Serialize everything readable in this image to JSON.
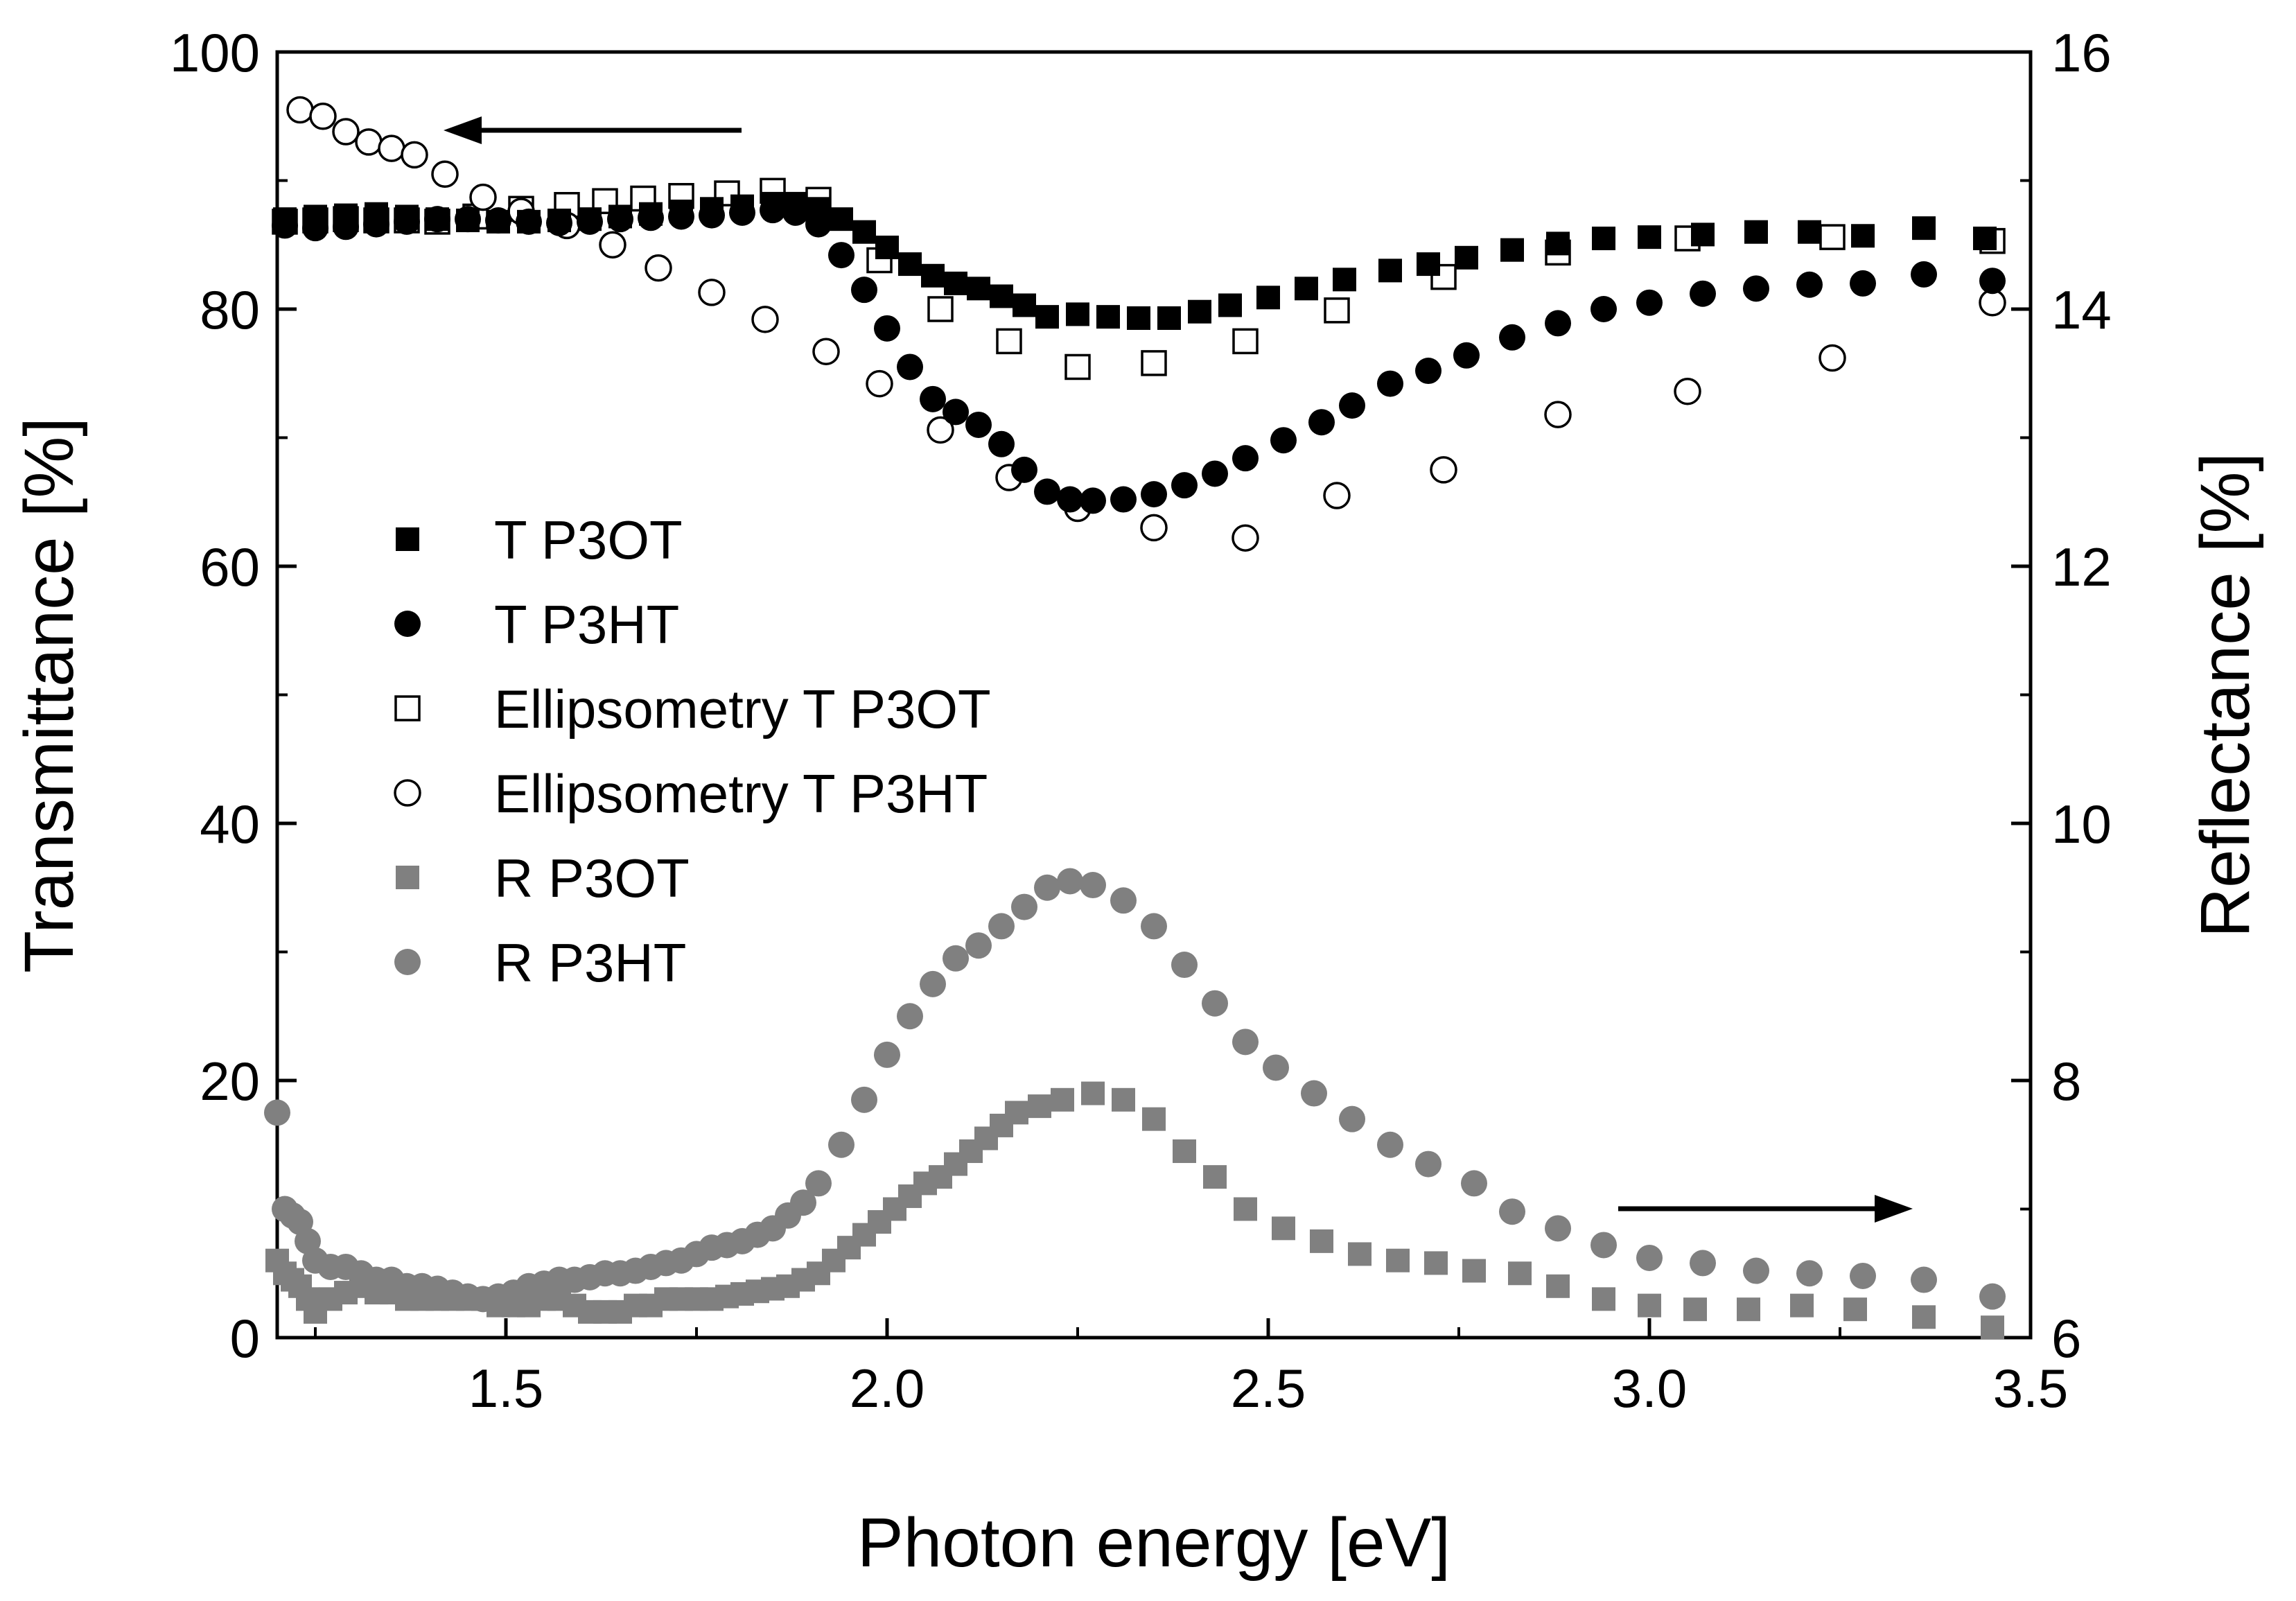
{
  "chart_data": {
    "type": "scatter",
    "xlabel": "Photon energy [eV]",
    "ylabel": "Transmittance [%]",
    "y2label": "Reflectance [%]",
    "xlim": [
      1.2,
      3.5
    ],
    "ylim": [
      0,
      100
    ],
    "y2lim": [
      6,
      16
    ],
    "xticks": [
      1.5,
      2.0,
      2.5,
      3.0,
      3.5
    ],
    "xtick_labels": [
      "1.5",
      "2.0",
      "2.5",
      "3.0",
      "3.5"
    ],
    "yticks": [
      0,
      20,
      40,
      60,
      80,
      100
    ],
    "ytick_labels": [
      "0",
      "20",
      "40",
      "60",
      "80",
      "100"
    ],
    "y2ticks": [
      6,
      8,
      10,
      12,
      14,
      16
    ],
    "y2tick_labels": [
      "6",
      "8",
      "10",
      "12",
      "14",
      "16"
    ],
    "grid": false,
    "legend_position": "left-center",
    "annotations": [
      {
        "type": "arrow",
        "direction": "left",
        "meaning": "Transmittance series use left axis"
      },
      {
        "type": "arrow",
        "direction": "right",
        "meaning": "Reflectance series use right axis"
      }
    ],
    "series": [
      {
        "name": "T P3OT",
        "marker": "square",
        "fill": "filled",
        "color": "#000000",
        "axis": "left",
        "x": [
          1.21,
          1.25,
          1.29,
          1.33,
          1.37,
          1.41,
          1.45,
          1.49,
          1.53,
          1.57,
          1.61,
          1.65,
          1.69,
          1.73,
          1.77,
          1.81,
          1.85,
          1.88,
          1.91,
          1.94,
          1.97,
          2.0,
          2.03,
          2.06,
          2.09,
          2.12,
          2.15,
          2.18,
          2.21,
          2.25,
          2.29,
          2.33,
          2.37,
          2.41,
          2.45,
          2.5,
          2.55,
          2.6,
          2.66,
          2.71,
          2.76,
          2.82,
          2.88,
          2.94,
          3.0,
          3.07,
          3.14,
          3.21,
          3.28,
          3.36,
          3.44
        ],
        "values": [
          87.0,
          87.2,
          87.3,
          87.4,
          87.2,
          87.0,
          86.9,
          86.8,
          86.8,
          86.9,
          87.0,
          87.2,
          87.4,
          87.6,
          87.8,
          88.0,
          88.2,
          88.2,
          87.8,
          87.0,
          86.0,
          84.8,
          83.5,
          82.6,
          82.0,
          81.6,
          81.0,
          80.3,
          79.4,
          79.6,
          79.4,
          79.3,
          79.3,
          79.8,
          80.3,
          80.9,
          81.6,
          82.3,
          83.0,
          83.5,
          84.0,
          84.6,
          85.1,
          85.5,
          85.6,
          85.8,
          86.0,
          86.0,
          85.7,
          86.3,
          85.5
        ]
      },
      {
        "name": "T P3HT",
        "marker": "circle",
        "fill": "filled",
        "color": "#000000",
        "axis": "left",
        "x": [
          1.21,
          1.25,
          1.29,
          1.33,
          1.37,
          1.41,
          1.45,
          1.49,
          1.53,
          1.57,
          1.61,
          1.65,
          1.69,
          1.73,
          1.77,
          1.81,
          1.85,
          1.88,
          1.91,
          1.94,
          1.97,
          2.0,
          2.03,
          2.06,
          2.09,
          2.12,
          2.15,
          2.18,
          2.21,
          2.24,
          2.27,
          2.31,
          2.35,
          2.39,
          2.43,
          2.47,
          2.52,
          2.57,
          2.61,
          2.66,
          2.71,
          2.76,
          2.82,
          2.88,
          2.94,
          3.0,
          3.07,
          3.14,
          3.21,
          3.28,
          3.36,
          3.45
        ],
        "values": [
          86.5,
          86.3,
          86.4,
          86.6,
          86.8,
          87.0,
          87.0,
          86.9,
          86.8,
          86.7,
          86.8,
          87.0,
          87.1,
          87.2,
          87.3,
          87.5,
          87.7,
          87.5,
          86.6,
          84.2,
          81.5,
          78.5,
          75.5,
          73.0,
          72.0,
          71.0,
          69.5,
          67.5,
          65.8,
          65.2,
          65.1,
          65.2,
          65.6,
          66.3,
          67.2,
          68.4,
          69.8,
          71.2,
          72.5,
          74.2,
          75.2,
          76.4,
          77.8,
          78.9,
          80.0,
          80.5,
          81.2,
          81.6,
          81.9,
          82.0,
          82.7,
          82.2
        ]
      },
      {
        "name": "Ellipsometry T P3OT",
        "marker": "square",
        "fill": "open",
        "color": "#000000",
        "axis": "left",
        "x": [
          1.21,
          1.25,
          1.29,
          1.33,
          1.37,
          1.41,
          1.46,
          1.52,
          1.58,
          1.63,
          1.68,
          1.73,
          1.79,
          1.85,
          1.91,
          1.99,
          2.07,
          2.16,
          2.25,
          2.35,
          2.47,
          2.59,
          2.73,
          2.88,
          3.05,
          3.24,
          3.45
        ],
        "values": [
          86.8,
          86.9,
          87.0,
          86.9,
          86.9,
          86.8,
          87.2,
          87.8,
          88.1,
          88.4,
          88.6,
          88.8,
          89.0,
          89.2,
          88.5,
          83.8,
          80.0,
          77.5,
          75.5,
          75.8,
          77.5,
          79.9,
          82.5,
          84.4,
          85.5,
          85.6,
          85.3
        ]
      },
      {
        "name": "Ellipsometry T P3HT",
        "marker": "circle",
        "fill": "open",
        "color": "#000000",
        "axis": "left",
        "x": [
          1.23,
          1.26,
          1.29,
          1.32,
          1.35,
          1.38,
          1.42,
          1.47,
          1.52,
          1.58,
          1.64,
          1.7,
          1.77,
          1.84,
          1.92,
          1.99,
          2.07,
          2.16,
          2.25,
          2.35,
          2.47,
          2.59,
          2.73,
          2.88,
          3.05,
          3.24,
          3.45
        ],
        "values": [
          95.5,
          95.0,
          93.8,
          93.0,
          92.5,
          92.0,
          90.5,
          88.7,
          87.6,
          86.5,
          85.0,
          83.2,
          81.3,
          79.2,
          76.7,
          74.2,
          70.6,
          66.9,
          64.5,
          63.0,
          62.2,
          65.5,
          67.5,
          71.8,
          73.6,
          76.2,
          80.5
        ]
      },
      {
        "name": "R P3OT",
        "marker": "square",
        "fill": "filled",
        "color": "#808080",
        "axis": "right",
        "x": [
          1.2,
          1.21,
          1.22,
          1.23,
          1.24,
          1.25,
          1.27,
          1.29,
          1.31,
          1.33,
          1.35,
          1.37,
          1.39,
          1.41,
          1.43,
          1.45,
          1.47,
          1.49,
          1.51,
          1.53,
          1.55,
          1.57,
          1.59,
          1.61,
          1.63,
          1.65,
          1.67,
          1.69,
          1.71,
          1.73,
          1.75,
          1.77,
          1.79,
          1.81,
          1.83,
          1.85,
          1.87,
          1.89,
          1.91,
          1.93,
          1.95,
          1.97,
          1.99,
          2.01,
          2.03,
          2.05,
          2.07,
          2.09,
          2.11,
          2.13,
          2.15,
          2.17,
          2.2,
          2.23,
          2.27,
          2.31,
          2.35,
          2.39,
          2.43,
          2.47,
          2.52,
          2.57,
          2.62,
          2.67,
          2.72,
          2.77,
          2.83,
          2.88,
          2.94,
          3.0,
          3.06,
          3.13,
          3.2,
          3.27,
          3.36,
          3.45
        ],
        "values": [
          6.6,
          6.5,
          6.45,
          6.4,
          6.3,
          6.2,
          6.3,
          6.35,
          6.4,
          6.35,
          6.35,
          6.3,
          6.3,
          6.3,
          6.3,
          6.3,
          6.3,
          6.25,
          6.25,
          6.25,
          6.3,
          6.3,
          6.25,
          6.2,
          6.2,
          6.2,
          6.25,
          6.25,
          6.3,
          6.3,
          6.3,
          6.3,
          6.32,
          6.34,
          6.36,
          6.38,
          6.4,
          6.45,
          6.5,
          6.6,
          6.7,
          6.8,
          6.9,
          7.0,
          7.1,
          7.2,
          7.25,
          7.35,
          7.45,
          7.55,
          7.65,
          7.75,
          7.8,
          7.85,
          7.9,
          7.85,
          7.7,
          7.45,
          7.25,
          7.0,
          6.85,
          6.75,
          6.65,
          6.6,
          6.58,
          6.52,
          6.5,
          6.4,
          6.3,
          6.25,
          6.22,
          6.22,
          6.25,
          6.22,
          6.16,
          6.08
        ]
      },
      {
        "name": "R P3HT",
        "marker": "circle",
        "fill": "filled",
        "color": "#808080",
        "axis": "right",
        "x": [
          1.2,
          1.21,
          1.22,
          1.23,
          1.24,
          1.25,
          1.27,
          1.29,
          1.31,
          1.33,
          1.35,
          1.37,
          1.39,
          1.41,
          1.43,
          1.45,
          1.47,
          1.49,
          1.51,
          1.53,
          1.55,
          1.57,
          1.59,
          1.61,
          1.63,
          1.65,
          1.67,
          1.69,
          1.71,
          1.73,
          1.75,
          1.77,
          1.79,
          1.81,
          1.83,
          1.85,
          1.87,
          1.89,
          1.91,
          1.94,
          1.97,
          2.0,
          2.03,
          2.06,
          2.09,
          2.12,
          2.15,
          2.18,
          2.21,
          2.24,
          2.27,
          2.31,
          2.35,
          2.39,
          2.43,
          2.47,
          2.51,
          2.56,
          2.61,
          2.66,
          2.71,
          2.77,
          2.82,
          2.88,
          2.94,
          3.0,
          3.07,
          3.14,
          3.21,
          3.28,
          3.36,
          3.45
        ],
        "values": [
          7.75,
          7.0,
          6.95,
          6.9,
          6.75,
          6.6,
          6.55,
          6.55,
          6.5,
          6.45,
          6.45,
          6.4,
          6.4,
          6.38,
          6.35,
          6.32,
          6.3,
          6.32,
          6.35,
          6.4,
          6.42,
          6.45,
          6.45,
          6.47,
          6.5,
          6.5,
          6.52,
          6.55,
          6.58,
          6.6,
          6.65,
          6.7,
          6.72,
          6.75,
          6.8,
          6.85,
          6.95,
          7.05,
          7.2,
          7.5,
          7.85,
          8.2,
          8.5,
          8.75,
          8.95,
          9.05,
          9.2,
          9.35,
          9.5,
          9.55,
          9.52,
          9.4,
          9.2,
          8.9,
          8.6,
          8.3,
          8.1,
          7.9,
          7.7,
          7.5,
          7.35,
          7.2,
          6.98,
          6.85,
          6.72,
          6.62,
          6.58,
          6.52,
          6.5,
          6.48,
          6.45,
          6.32
        ]
      }
    ]
  }
}
